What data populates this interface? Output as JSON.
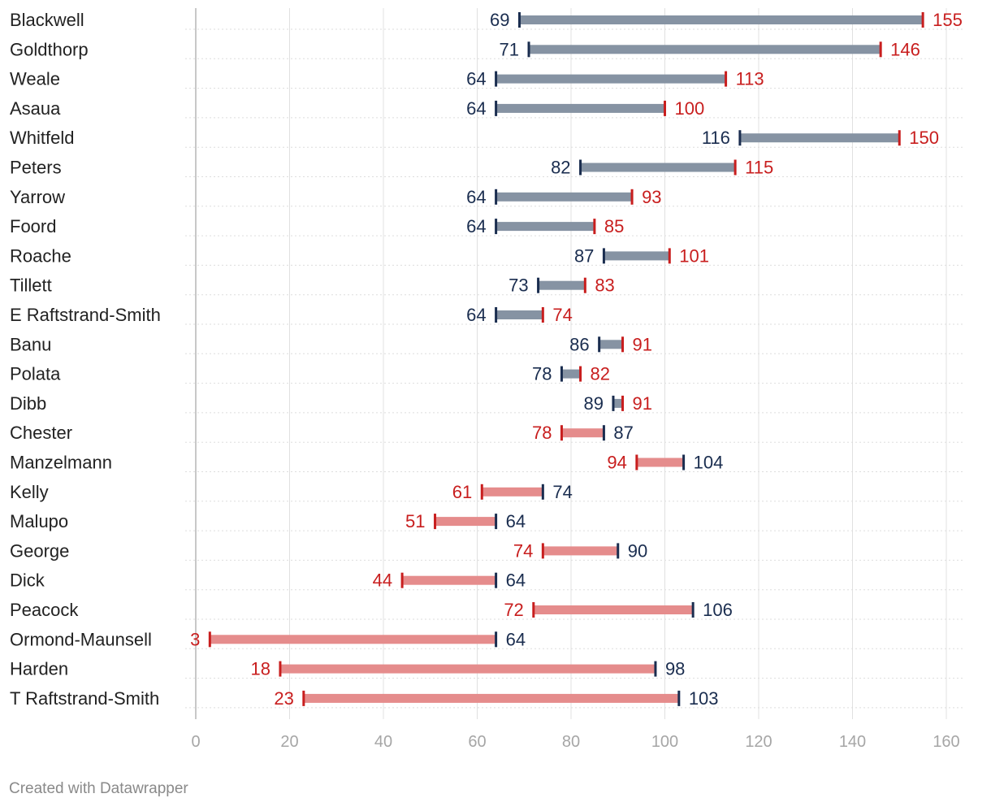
{
  "chart_data": {
    "type": "range-bar",
    "xlim": [
      0,
      160
    ],
    "x_ticks": [
      "0",
      "20",
      "40",
      "60",
      "80",
      "100",
      "120",
      "140",
      "160"
    ],
    "colors": {
      "increase_bar": "#8693a3",
      "decrease_bar": "#e58c8c",
      "start_marker": "#1a2d4f",
      "end_marker": "#c81e1e",
      "grid": "#e0e0e0",
      "axis": "#c8c8c8",
      "row_guide": "#dddddd"
    },
    "rows": [
      {
        "label": "Blackwell",
        "start": 69,
        "end": 155
      },
      {
        "label": "Goldthorp",
        "start": 71,
        "end": 146
      },
      {
        "label": "Weale",
        "start": 64,
        "end": 113
      },
      {
        "label": "Asaua",
        "start": 64,
        "end": 100
      },
      {
        "label": "Whitfeld",
        "start": 116,
        "end": 150
      },
      {
        "label": "Peters",
        "start": 82,
        "end": 115
      },
      {
        "label": "Yarrow",
        "start": 64,
        "end": 93
      },
      {
        "label": "Foord",
        "start": 64,
        "end": 85
      },
      {
        "label": "Roache",
        "start": 87,
        "end": 101
      },
      {
        "label": "Tillett",
        "start": 73,
        "end": 83
      },
      {
        "label": "E Raftstrand-Smith",
        "start": 64,
        "end": 74
      },
      {
        "label": "Banu",
        "start": 86,
        "end": 91
      },
      {
        "label": "Polata",
        "start": 78,
        "end": 82
      },
      {
        "label": "Dibb",
        "start": 89,
        "end": 91
      },
      {
        "label": "Chester",
        "start": 87,
        "end": 78
      },
      {
        "label": "Manzelmann",
        "start": 104,
        "end": 94
      },
      {
        "label": "Kelly",
        "start": 74,
        "end": 61
      },
      {
        "label": "Malupo",
        "start": 64,
        "end": 51
      },
      {
        "label": "George",
        "start": 90,
        "end": 74
      },
      {
        "label": "Dick",
        "start": 64,
        "end": 44
      },
      {
        "label": "Peacock",
        "start": 106,
        "end": 72
      },
      {
        "label": "Ormond-Maunsell",
        "start": 64,
        "end": 3
      },
      {
        "label": "Harden",
        "start": 98,
        "end": 18
      },
      {
        "label": "T Raftstrand-Smith",
        "start": 103,
        "end": 23
      }
    ]
  },
  "footer": {
    "credit": "Created with Datawrapper"
  }
}
